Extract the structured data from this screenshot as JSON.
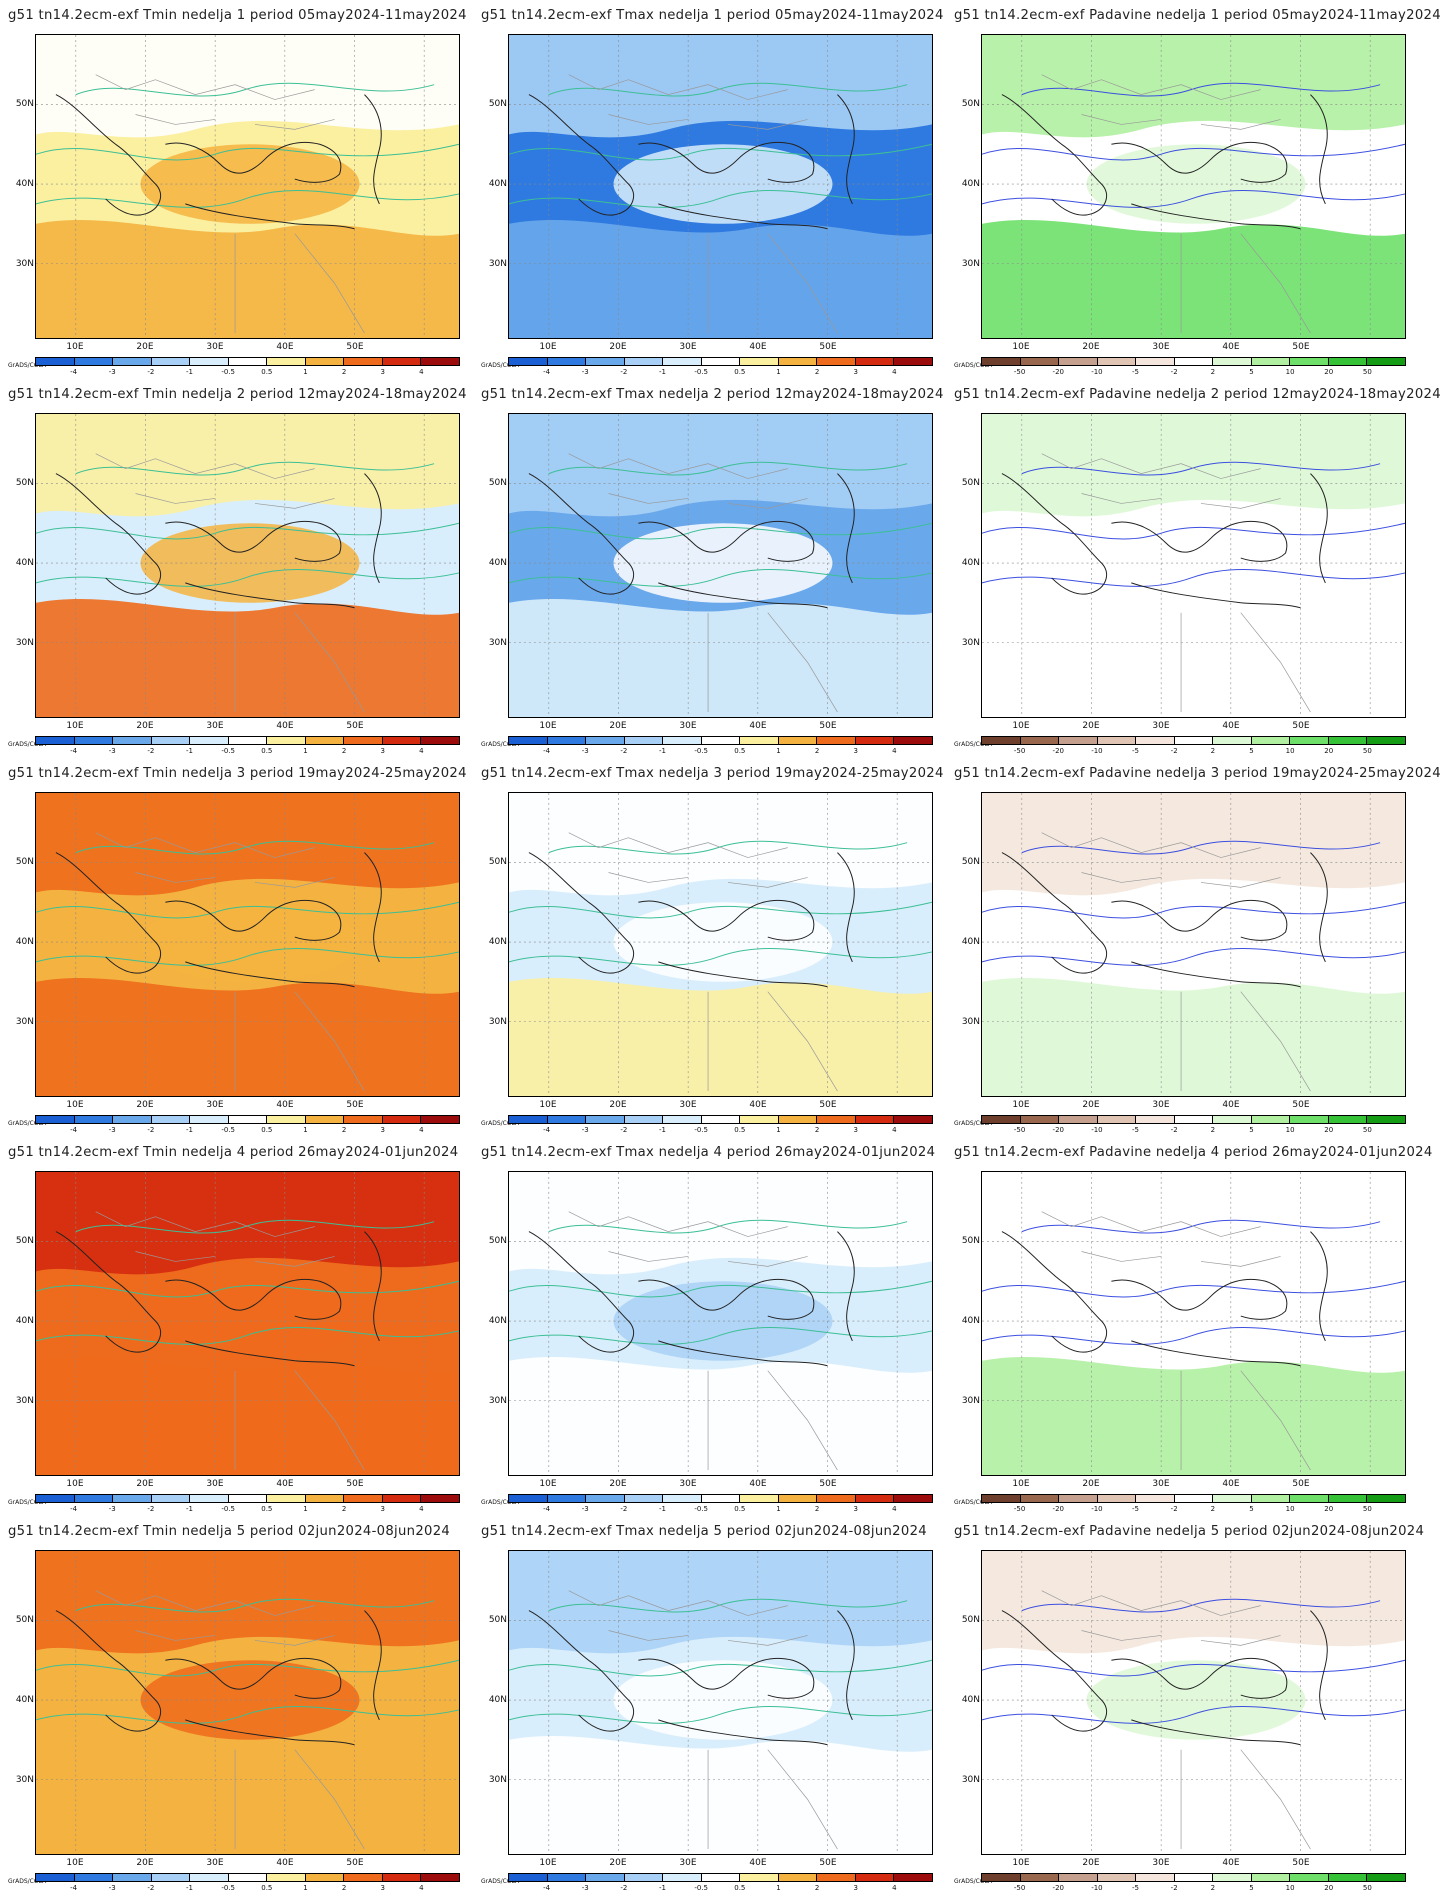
{
  "legend_source": "GrADS/COLA",
  "y_axis_labels": [
    "50N",
    "40N",
    "30N"
  ],
  "x_axis_labels": [
    "10E",
    "20E",
    "30E",
    "40E",
    "50E"
  ],
  "colorbars": {
    "temperature": {
      "labels": [
        "-4",
        "-3",
        "-2",
        "-1",
        "-0.5",
        "0.5",
        "1",
        "2",
        "3",
        "4"
      ],
      "colors": [
        "#1a5fd4",
        "#2f7ae0",
        "#6aa8ec",
        "#a8d0f6",
        "#d9eefc",
        "#ffffff",
        "#fbf0a0",
        "#f4b340",
        "#ee6a1c",
        "#d42a10",
        "#9c0c0c"
      ]
    },
    "precipitation": {
      "labels": [
        "-50",
        "-20",
        "-10",
        "-5",
        "-2",
        "2",
        "5",
        "10",
        "20",
        "50"
      ],
      "colors": [
        "#6e3f2c",
        "#99664e",
        "#c6a08e",
        "#e0c4b4",
        "#f4e6dc",
        "#ffffff",
        "#dcf8d4",
        "#b0f0a0",
        "#6ee06a",
        "#36c236",
        "#159c15"
      ]
    }
  },
  "panels": [
    {
      "title": "g51  tn14.2ecm-exf  Tmin  nedelja  1  period  05may2024-11may2024",
      "variable": "Tmin",
      "week": 1
    },
    {
      "title": "g51  tn14.2ecm-exf  Tmax  nedelja  1  period  05may2024-11may2024",
      "variable": "Tmax",
      "week": 1
    },
    {
      "title": "g51  tn14.2ecm-exf  Padavine  nedelja  1  period  05may2024-11may2024",
      "variable": "Padavine",
      "week": 1
    },
    {
      "title": "g51  tn14.2ecm-exf  Tmin  nedelja  2  period  12may2024-18may2024",
      "variable": "Tmin",
      "week": 2
    },
    {
      "title": "g51  tn14.2ecm-exf  Tmax  nedelja  2  period  12may2024-18may2024",
      "variable": "Tmax",
      "week": 2
    },
    {
      "title": "g51  tn14.2ecm-exf  Padavine  nedelja  2  period  12may2024-18may2024",
      "variable": "Padavine",
      "week": 2
    },
    {
      "title": "g51  tn14.2ecm-exf  Tmin  nedelja  3  period  19may2024-25may2024",
      "variable": "Tmin",
      "week": 3
    },
    {
      "title": "g51  tn14.2ecm-exf  Tmax  nedelja  3  period  19may2024-25may2024",
      "variable": "Tmax",
      "week": 3
    },
    {
      "title": "g51  tn14.2ecm-exf  Padavine  nedelja  3  period  19may2024-25may2024",
      "variable": "Padavine",
      "week": 3
    },
    {
      "title": "g51  tn14.2ecm-exf  Tmin  nedelja  4  period  26may2024-01jun2024",
      "variable": "Tmin",
      "week": 4
    },
    {
      "title": "g51  tn14.2ecm-exf  Tmax  nedelja  4  period  26may2024-01jun2024",
      "variable": "Tmax",
      "week": 4
    },
    {
      "title": "g51  tn14.2ecm-exf  Padavine  nedelja  4  period  26may2024-01jun2024",
      "variable": "Padavine",
      "week": 4
    },
    {
      "title": "g51  tn14.2ecm-exf  Tmin  nedelja  5  period  02jun2024-08jun2024",
      "variable": "Tmin",
      "week": 5
    },
    {
      "title": "g51  tn14.2ecm-exf  Tmax  nedelja  5  period  02jun2024-08jun2024",
      "variable": "Tmax",
      "week": 5
    },
    {
      "title": "g51  tn14.2ecm-exf  Padavine  nedelja  5  period  02jun2024-08jun2024",
      "variable": "Padavine",
      "week": 5
    }
  ]
}
